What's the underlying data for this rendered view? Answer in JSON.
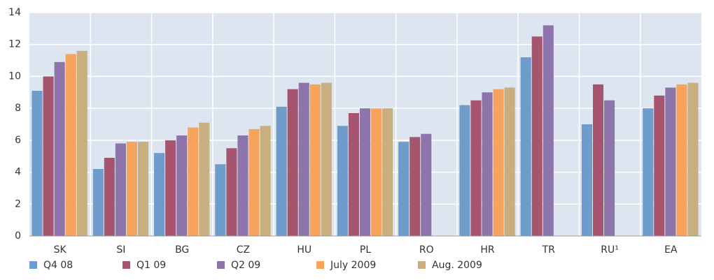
{
  "chart_data": {
    "type": "bar",
    "categories": [
      "SK",
      "SI",
      "BG",
      "CZ",
      "HU",
      "PL",
      "RO",
      "HR",
      "TR",
      "RU¹",
      "EA"
    ],
    "series": [
      {
        "name": "Q4 08",
        "color": "#6e9ccb",
        "values": [
          9.1,
          4.2,
          5.2,
          4.5,
          8.1,
          6.9,
          5.9,
          8.2,
          11.2,
          7.0,
          8.0
        ]
      },
      {
        "name": "Q1 09",
        "color": "#a5566e",
        "values": [
          10.0,
          4.9,
          6.0,
          5.5,
          9.2,
          7.7,
          6.2,
          8.5,
          12.5,
          9.5,
          8.8
        ]
      },
      {
        "name": "Q2 09",
        "color": "#8d74aa",
        "values": [
          10.9,
          5.8,
          6.3,
          6.3,
          9.6,
          8.0,
          6.4,
          9.0,
          13.2,
          8.5,
          9.3
        ]
      },
      {
        "name": "July 2009",
        "color": "#f7a35c",
        "values": [
          11.4,
          5.9,
          6.8,
          6.7,
          9.5,
          8.0,
          null,
          9.2,
          null,
          null,
          9.5
        ]
      },
      {
        "name": "Aug. 2009",
        "color": "#c9ae80",
        "values": [
          11.6,
          5.9,
          7.1,
          6.9,
          9.6,
          8.0,
          null,
          9.3,
          null,
          null,
          9.6
        ]
      }
    ],
    "ylim": [
      0,
      14
    ],
    "yticks": [
      0,
      2,
      4,
      6,
      8,
      10,
      12,
      14
    ],
    "grid": true
  }
}
